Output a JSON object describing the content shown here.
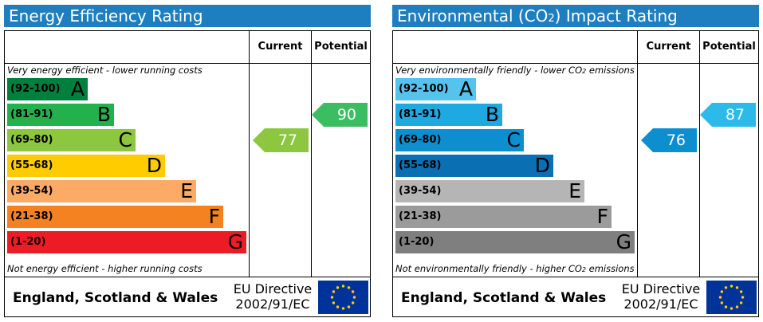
{
  "chart_data": [
    {
      "type": "bar",
      "title": "Energy Efficiency Rating",
      "columns": [
        "Current",
        "Potential"
      ],
      "top_caption": "Very energy efficient - lower running costs",
      "bottom_caption": "Not energy efficient - higher running costs",
      "bands": [
        {
          "range": "(92-100)",
          "letter": "A",
          "color": "#007f3d"
        },
        {
          "range": "(81-91)",
          "letter": "B",
          "color": "#23b14d"
        },
        {
          "range": "(69-80)",
          "letter": "C",
          "color": "#8dc63f"
        },
        {
          "range": "(55-68)",
          "letter": "D",
          "color": "#ffcc00"
        },
        {
          "range": "(39-54)",
          "letter": "E",
          "color": "#fcaa65"
        },
        {
          "range": "(21-38)",
          "letter": "F",
          "color": "#f58220"
        },
        {
          "range": "(1-20)",
          "letter": "G",
          "color": "#ed1c24"
        }
      ],
      "current": {
        "value": "77",
        "band": "C",
        "color": "#8dc63f"
      },
      "potential": {
        "value": "90",
        "band": "B",
        "color": "#3bbd61"
      },
      "footer": {
        "region": "England, Scotland & Wales",
        "directive_line1": "EU Directive",
        "directive_line2": "2002/91/EC"
      }
    },
    {
      "type": "bar",
      "title_prefix": "Environmental (CO",
      "title_sub": "2",
      "title_suffix": ") Impact Rating",
      "columns": [
        "Current",
        "Potential"
      ],
      "top_caption_prefix": "Very environmentally friendly - lower CO",
      "top_caption_sub": "2",
      "top_caption_suffix": " emissions",
      "bottom_caption_prefix": "Not environmentally friendly - higher CO",
      "bottom_caption_sub": "2",
      "bottom_caption_suffix": " emissions",
      "bands": [
        {
          "range": "(92-100)",
          "letter": "A",
          "color": "#55c3ee"
        },
        {
          "range": "(81-91)",
          "letter": "B",
          "color": "#1ea9e1"
        },
        {
          "range": "(69-80)",
          "letter": "C",
          "color": "#0d8fcf"
        },
        {
          "range": "(55-68)",
          "letter": "D",
          "color": "#0b6fb4"
        },
        {
          "range": "(39-54)",
          "letter": "E",
          "color": "#b5b5b5"
        },
        {
          "range": "(21-38)",
          "letter": "F",
          "color": "#9b9b9b"
        },
        {
          "range": "(1-20)",
          "letter": "G",
          "color": "#7f7f7f"
        }
      ],
      "current": {
        "value": "76",
        "band": "C",
        "color": "#0d8fcf"
      },
      "potential": {
        "value": "87",
        "band": "B",
        "color": "#2cbaeb"
      },
      "footer": {
        "region": "England, Scotland & Wales",
        "directive_line1": "EU Directive",
        "directive_line2": "2002/91/EC"
      }
    }
  ]
}
